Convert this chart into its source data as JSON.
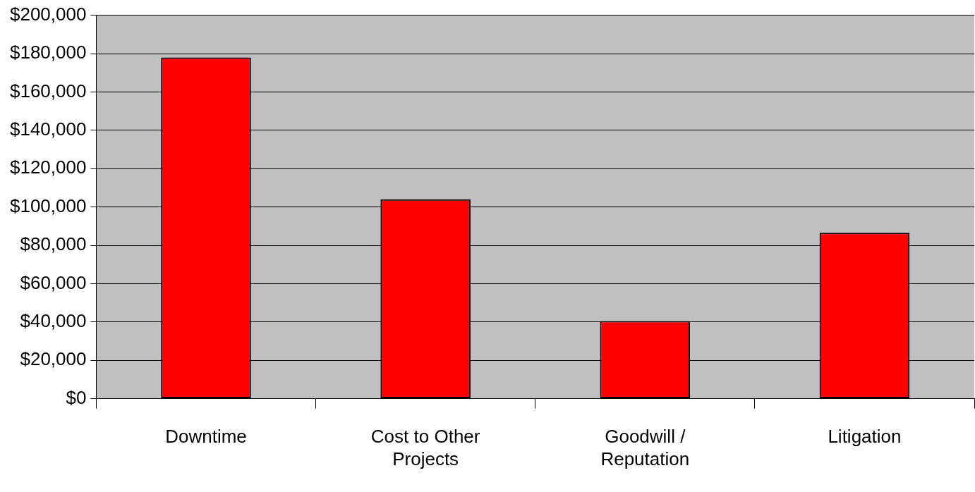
{
  "chart_data": {
    "type": "bar",
    "categories": [
      "Downtime",
      "Cost to Other Projects",
      "Goodwill / Reputation",
      "Litigation"
    ],
    "values": [
      178000,
      104000,
      40500,
      86500
    ],
    "color": "#ff0000",
    "ylim": [
      0,
      200000
    ],
    "yticks": [
      {
        "value": 0,
        "label": "$0"
      },
      {
        "value": 20000,
        "label": "$20,000"
      },
      {
        "value": 40000,
        "label": "$40,000"
      },
      {
        "value": 60000,
        "label": "$60,000"
      },
      {
        "value": 80000,
        "label": "$80,000"
      },
      {
        "value": 100000,
        "label": "$100,000"
      },
      {
        "value": 120000,
        "label": "$120,000"
      },
      {
        "value": 140000,
        "label": "$140,000"
      },
      {
        "value": 160000,
        "label": "$160,000"
      },
      {
        "value": 180000,
        "label": "$180,000"
      },
      {
        "value": 200000,
        "label": "$200,000"
      }
    ],
    "grid": "y"
  }
}
